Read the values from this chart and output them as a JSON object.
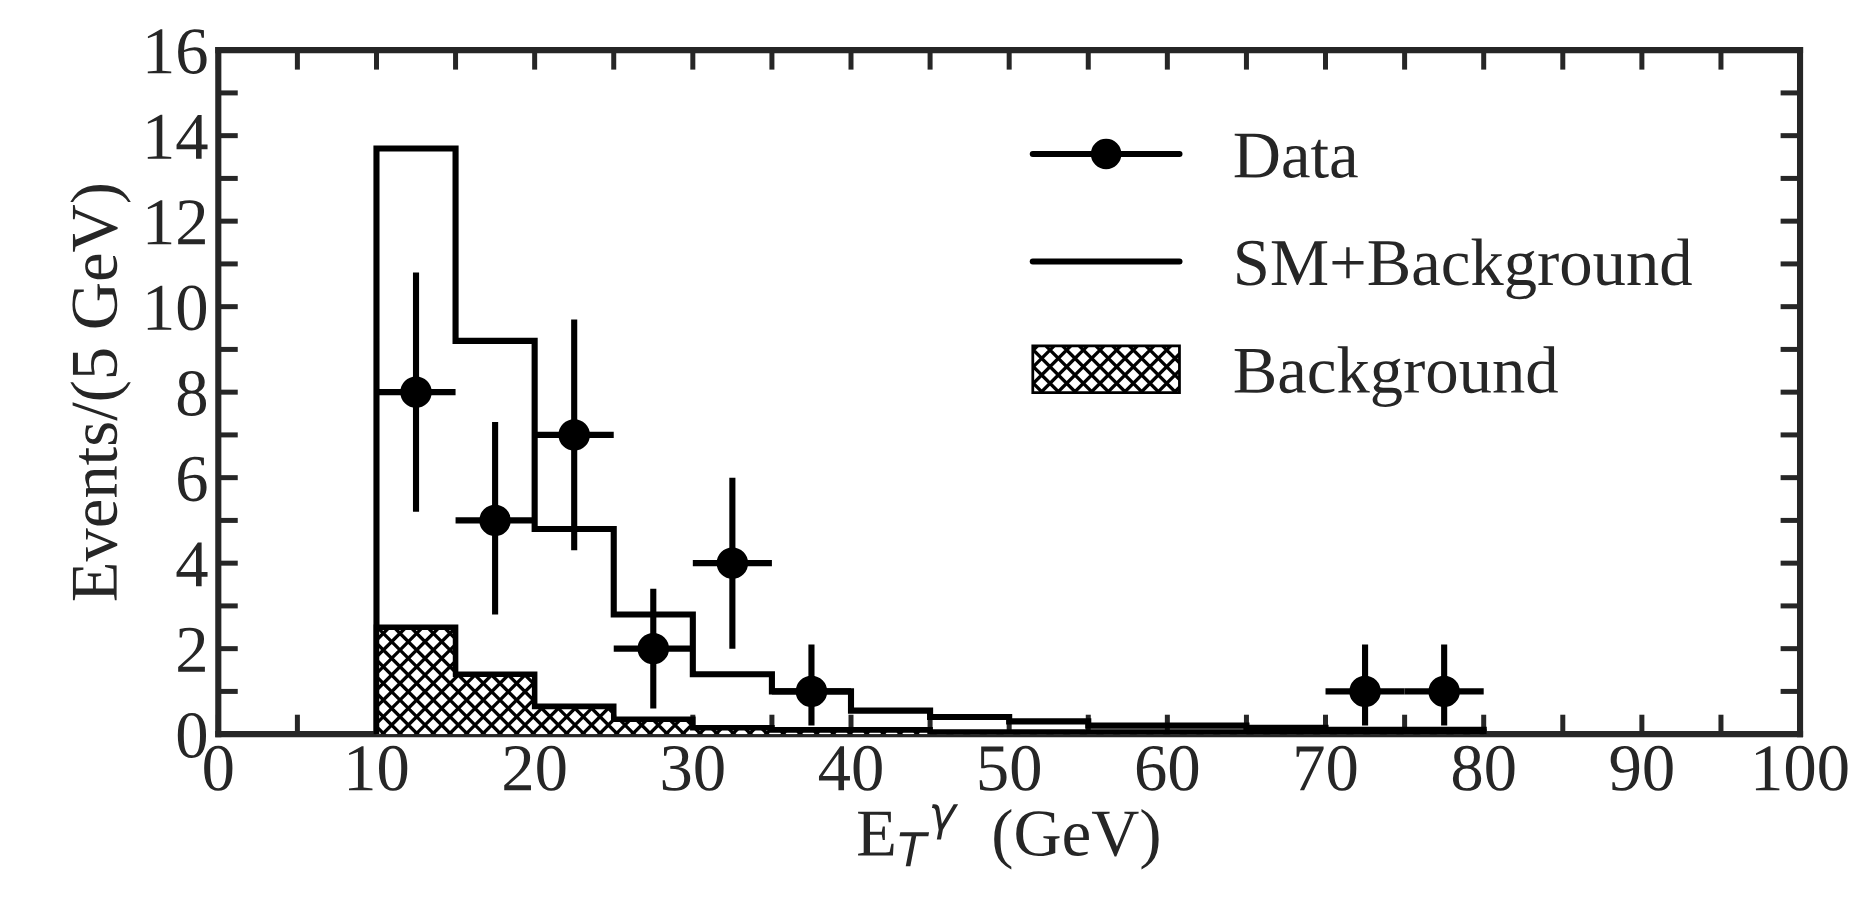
{
  "chart_data": {
    "type": "histogram",
    "xlabel": "E$_{T}$$^{γ}$  (GeV)",
    "ylabel": "Events/(5 GeV)",
    "bins": [
      10,
      15,
      20,
      25,
      30,
      35,
      40,
      45,
      50,
      55,
      60,
      65,
      70,
      75,
      80
    ],
    "series": [
      {
        "name": "SM+Background",
        "color": "#000000",
        "values": [
          13.7,
          9.2,
          4.8,
          2.8,
          1.4,
          1.0,
          0.55,
          0.4,
          0.3,
          0.2,
          0.2,
          0.15,
          0.1,
          0.1
        ]
      },
      {
        "name": "Background",
        "color": "#000000",
        "values": [
          2.5,
          1.4,
          0.65,
          0.35,
          0.15,
          0.1,
          0.1,
          0.05,
          0.05,
          0.05,
          0.05,
          0.05,
          0.05,
          0.05
        ]
      },
      {
        "name": "Data",
        "type": "scatter",
        "color": "#000000",
        "marker": "circle",
        "x": [
          12.5,
          17.5,
          22.5,
          27.5,
          32.5,
          37.5,
          72.5,
          77.5
        ],
        "values": [
          8,
          5,
          7,
          2,
          4,
          1,
          1,
          1
        ],
        "errors": [
          [
            5.2,
            10.8
          ],
          [
            2.8,
            7.3
          ],
          [
            4.3,
            9.7
          ],
          [
            0.6,
            3.4
          ],
          [
            2.0,
            6.0
          ],
          [
            0.2,
            2.1
          ],
          [
            0.2,
            2.1
          ],
          [
            0.2,
            2.1
          ]
        ],
        "xerrors": [
          2.5,
          2.5,
          2.5,
          2.5,
          2.5,
          2.5,
          2.5,
          2.5
        ]
      }
    ],
    "xlim": [
      0,
      100
    ],
    "ylim": [
      0,
      16
    ],
    "xticks": [
      0,
      {
        "value": 5,
        "label": null
      },
      10,
      {
        "value": 15,
        "label": null
      },
      20,
      {
        "value": 25,
        "label": null
      },
      30,
      {
        "value": 35,
        "label": null
      },
      40,
      {
        "value": 45,
        "label": null
      },
      50,
      {
        "value": 55,
        "label": null
      },
      60,
      {
        "value": 65,
        "label": null
      },
      70,
      {
        "value": 75,
        "label": null
      },
      80,
      {
        "value": 85,
        "label": null
      },
      90,
      {
        "value": 95,
        "label": null
      },
      100
    ],
    "yticks": [
      0,
      {
        "value": 1,
        "label": null
      },
      2,
      {
        "value": 3,
        "label": null
      },
      4,
      {
        "value": 5,
        "label": null
      },
      6,
      {
        "value": 7,
        "label": null
      },
      8,
      {
        "value": 9,
        "label": null
      },
      10,
      {
        "value": 11,
        "label": null
      },
      12,
      {
        "value": 13,
        "label": null
      },
      14,
      {
        "value": 15,
        "label": null
      },
      16
    ],
    "legend": "top right",
    "grid": false
  }
}
